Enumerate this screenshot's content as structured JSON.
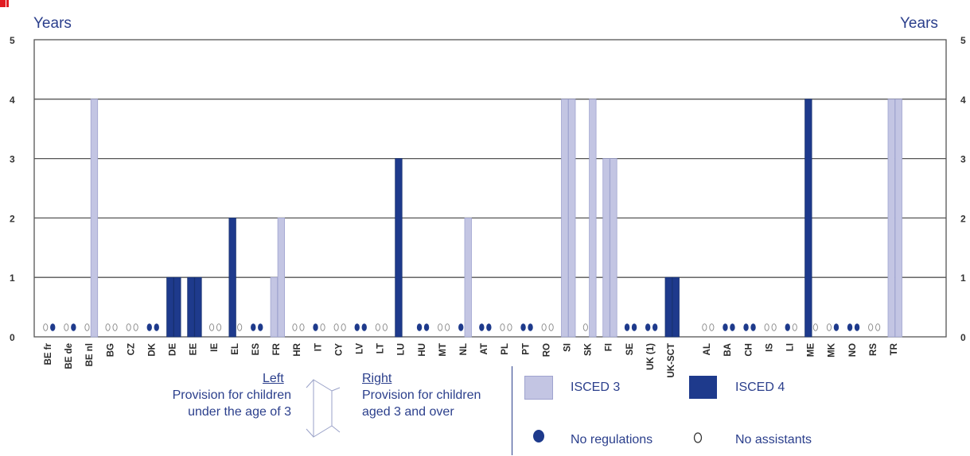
{
  "chart_data": {
    "type": "bar",
    "ylabel_left": "Years",
    "ylabel_right": "Years",
    "ylim": [
      0,
      5
    ],
    "yticks": [
      "0",
      "1",
      "2",
      "3",
      "4",
      "5"
    ],
    "grid": true,
    "categories": [
      "BE fr",
      "BE de",
      "BE nl",
      "BG",
      "CZ",
      "DK",
      "DE",
      "EE",
      "IE",
      "EL",
      "ES",
      "FR",
      "HR",
      "IT",
      "CY",
      "LV",
      "LT",
      "LU",
      "HU",
      "MT",
      "NL",
      "AT",
      "PL",
      "PT",
      "RO",
      "SI",
      "SK",
      "FI",
      "SE",
      "UK (1)",
      "UK-SCT",
      "AL",
      "BA",
      "CH",
      "IS",
      "LI",
      "ME",
      "MK",
      "NO",
      "RS",
      "TR"
    ],
    "groups": [
      31
    ],
    "series": [
      {
        "name": "Provision for children under the age of 3",
        "values": [
          0,
          0,
          0,
          0,
          0,
          0,
          1,
          1,
          0,
          2,
          0,
          1,
          0,
          0,
          0,
          0,
          0,
          3,
          0,
          0,
          0,
          0,
          0,
          0,
          0,
          4,
          0,
          3,
          0,
          0,
          1,
          0,
          0,
          0,
          0,
          0,
          4,
          0,
          0,
          0,
          4
        ],
        "isced": [
          "",
          "",
          "",
          "",
          "",
          "",
          "4",
          "4",
          "",
          "4",
          "",
          "3",
          "",
          "",
          "",
          "",
          "",
          "4",
          "",
          "",
          "",
          "",
          "",
          "",
          "",
          "3",
          "",
          "3",
          "",
          "",
          "4",
          "",
          "",
          "",
          "",
          "",
          "4",
          "",
          "",
          "",
          "3"
        ],
        "markers": [
          "o",
          "o",
          "o",
          "o",
          "o",
          "dot",
          "",
          "",
          "o",
          "",
          "dot",
          "",
          "o",
          "dot",
          "o",
          "dot",
          "o",
          "",
          "dot",
          "o",
          "dot",
          "dot",
          "o",
          "dot",
          "o",
          "",
          "o",
          "",
          "dot",
          "dot",
          "",
          "o",
          "dot",
          "dot",
          "o",
          "dot",
          "",
          "o",
          "dot",
          "o",
          ""
        ]
      },
      {
        "name": "Provision for children aged 3 and over",
        "values": [
          0,
          0,
          4,
          0,
          0,
          0,
          1,
          1,
          0,
          0,
          0,
          2,
          0,
          0,
          0,
          0,
          0,
          0,
          0,
          0,
          2,
          0,
          0,
          0,
          0,
          4,
          4,
          3,
          0,
          0,
          1,
          0,
          0,
          0,
          0,
          0,
          0,
          0,
          0,
          0,
          4
        ],
        "isced": [
          "",
          "",
          "3",
          "",
          "",
          "",
          "4",
          "4",
          "",
          "",
          "",
          "3",
          "",
          "",
          "",
          "",
          "",
          "",
          "",
          "",
          "3",
          "",
          "",
          "",
          "",
          "3",
          "3",
          "3",
          "",
          "",
          "4",
          "",
          "",
          "",
          "",
          "",
          "",
          "",
          "",
          "",
          "3"
        ],
        "markers": [
          "dot",
          "dot",
          "",
          "o",
          "o",
          "dot",
          "",
          "",
          "o",
          "o",
          "dot",
          "",
          "o",
          "o",
          "o",
          "dot",
          "o",
          "",
          "dot",
          "o",
          "",
          "dot",
          "o",
          "dot",
          "o",
          "",
          "",
          "",
          "dot",
          "dot",
          "",
          "o",
          "dot",
          "dot",
          "o",
          "o",
          "o",
          "dot",
          "dot",
          "o",
          ""
        ]
      }
    ],
    "colors": {
      "isced3": "#c3c5e3",
      "isced4": "#1e3a8c",
      "grid": "#555555",
      "text": "#2b3f8c"
    }
  },
  "legend": {
    "left_title": "Left",
    "left_line1": "Provision for children",
    "left_line2": "under the age of 3",
    "right_title": "Right",
    "right_line1": "Provision for children",
    "right_line2": "aged 3 and over",
    "isced3": "ISCED 3",
    "isced4": "ISCED 4",
    "no_regulations": "No regulations",
    "no_assistants": "No assistants"
  }
}
